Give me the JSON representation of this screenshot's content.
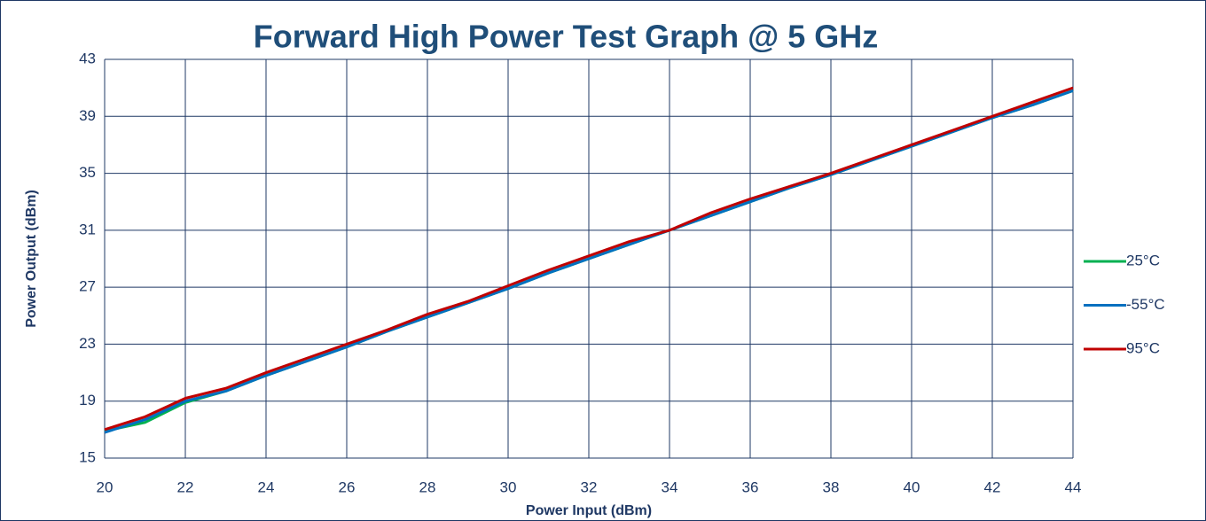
{
  "chart_data": {
    "type": "line",
    "title": "Forward High Power Test Graph @ 5 GHz",
    "x_label": "Power Input (dBm)",
    "y_label": "Power Output  (dBm)",
    "x": [
      20,
      21,
      22,
      23,
      24,
      25,
      26,
      27,
      28,
      29,
      30,
      31,
      32,
      33,
      34,
      35,
      36,
      37,
      38,
      39,
      40,
      41,
      42,
      43,
      44
    ],
    "series": [
      {
        "name": "25°C",
        "color": "#00b050",
        "values": [
          16.9,
          17.5,
          18.9,
          19.7,
          20.8,
          21.8,
          22.8,
          23.9,
          24.9,
          25.9,
          26.9,
          28.0,
          29.0,
          30.0,
          31.0,
          32.0,
          33.0,
          34.0,
          34.9,
          35.9,
          36.9,
          37.9,
          38.9,
          39.8,
          40.8
        ]
      },
      {
        "name": "-55°C",
        "color": "#0070c0",
        "values": [
          16.8,
          17.7,
          19.0,
          19.7,
          20.8,
          21.8,
          22.8,
          23.9,
          24.9,
          25.9,
          26.9,
          28.0,
          29.0,
          30.0,
          31.0,
          32.0,
          33.0,
          34.0,
          34.9,
          35.9,
          36.9,
          37.9,
          38.9,
          39.8,
          40.8
        ]
      },
      {
        "name": "95°C",
        "color": "#c00000",
        "values": [
          17.0,
          17.9,
          19.2,
          19.9,
          21.0,
          22.0,
          23.0,
          24.0,
          25.1,
          26.0,
          27.1,
          28.2,
          29.2,
          30.2,
          31.0,
          32.2,
          33.2,
          34.1,
          35.0,
          36.0,
          37.0,
          38.0,
          39.0,
          40.0,
          41.0
        ]
      }
    ],
    "xlim": [
      20,
      44
    ],
    "xticks": [
      20,
      22,
      24,
      26,
      28,
      30,
      32,
      34,
      36,
      38,
      40,
      42,
      44
    ],
    "ylim": [
      15,
      43
    ],
    "yticks": [
      15,
      19,
      23,
      27,
      31,
      35,
      39,
      43
    ],
    "grid": true,
    "legend": "right"
  }
}
